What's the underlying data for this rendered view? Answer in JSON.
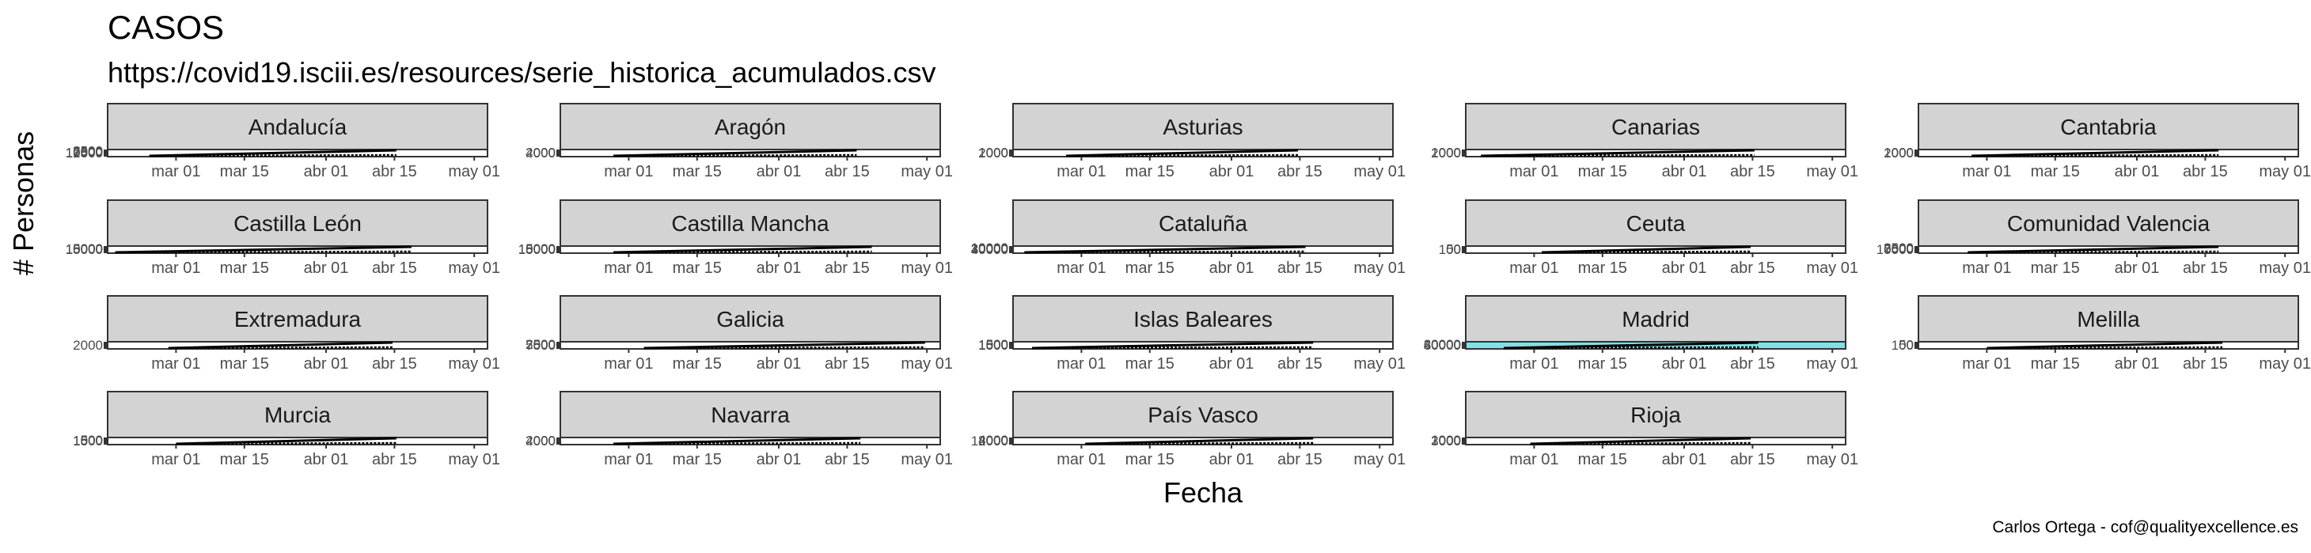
{
  "chart_data": {
    "type": "line",
    "title": "CASOS",
    "subtitle": "https://covid19.isciii.es/resources/serie_historica_acumulados.csv",
    "xlabel": "Fecha",
    "ylabel": "# Personas",
    "caption": "Carlos Ortega - cof@qualityexcellence.es",
    "x_tick_labels": [
      "mar 01",
      "mar 15",
      "abr 01",
      "abr 15",
      "may 01"
    ],
    "grid": false,
    "legend": "none",
    "colors": {
      "strip_fill": "#d3d3d3",
      "panel_border": "#333333",
      "line": "#000000",
      "madrid_highlight": "#7fe0e6"
    },
    "panels": [
      {
        "region": "Andalucía",
        "y_tick_labels": [
          "12500",
          "10000",
          "7500",
          "5000",
          "2500"
        ]
      },
      {
        "region": "Aragón",
        "y_tick_labels": [
          "4000",
          "2000"
        ]
      },
      {
        "region": "Asturias",
        "y_tick_labels": [
          "2000",
          "1000"
        ]
      },
      {
        "region": "Canarias",
        "y_tick_labels": [
          "2000",
          "1000"
        ]
      },
      {
        "region": "Cantabria",
        "y_tick_labels": [
          "2000",
          "1000"
        ]
      },
      {
        "region": "Castilla León",
        "y_tick_labels": [
          "15000",
          "10000",
          "5000"
        ]
      },
      {
        "region": "Castilla Mancha",
        "y_tick_labels": [
          "15000",
          "10000",
          "5000"
        ]
      },
      {
        "region": "Cataluña",
        "y_tick_labels": [
          "40000",
          "30000",
          "20000",
          "10000"
        ]
      },
      {
        "region": "Ceuta",
        "y_tick_labels": [
          "100",
          "50"
        ]
      },
      {
        "region": "Comunidad Valencia",
        "y_tick_labels": [
          "10000",
          "7500",
          "5000",
          "2500"
        ]
      },
      {
        "region": "Extremadura",
        "y_tick_labels": [
          "2000"
        ]
      },
      {
        "region": "Galicia",
        "y_tick_labels": [
          "7500",
          "5000",
          "2500"
        ]
      },
      {
        "region": "Islas Baleares",
        "y_tick_labels": [
          "1500",
          "1000",
          "500"
        ]
      },
      {
        "region": "Madrid",
        "y_tick_labels": [
          "60000",
          "40000",
          "20000"
        ]
      },
      {
        "region": "Melilla",
        "y_tick_labels": [
          "100",
          "50"
        ]
      },
      {
        "region": "Murcia",
        "y_tick_labels": [
          "1500",
          "1000",
          "500"
        ]
      },
      {
        "region": "Navarra",
        "y_tick_labels": [
          "4000",
          "2000"
        ]
      },
      {
        "region": "País Vasco",
        "y_tick_labels": [
          "12000",
          "8000",
          "4000"
        ]
      },
      {
        "region": "Rioja",
        "y_tick_labels": [
          "3000",
          "2000",
          "1000"
        ]
      }
    ]
  }
}
